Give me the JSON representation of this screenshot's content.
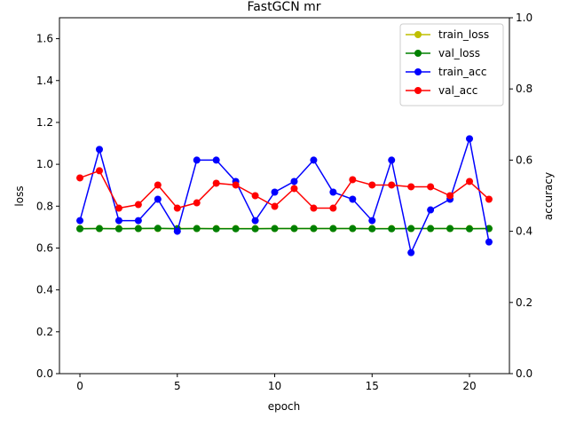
{
  "chart_data": {
    "type": "line",
    "title": "FastGCN mr",
    "xlabel": "epoch",
    "ylabel": "loss",
    "y2label": "accuracy",
    "xlim": [
      -1.05,
      22.05
    ],
    "ylim": [
      0,
      1.7
    ],
    "y2lim": [
      0,
      1.0
    ],
    "x_ticks": [
      0,
      5,
      10,
      15,
      20
    ],
    "y_ticks": [
      0.0,
      0.2,
      0.4,
      0.6,
      0.8,
      1.0,
      1.2,
      1.4,
      1.6
    ],
    "y_tick_labels": [
      "0.0",
      "0.2",
      "0.4",
      "0.6",
      "0.8",
      "1.0",
      "1.2",
      "1.4",
      "1.6"
    ],
    "y2_ticks": [
      0.0,
      0.2,
      0.4,
      0.6,
      0.8,
      1.0
    ],
    "y2_tick_labels": [
      "0.0",
      "0.2",
      "0.4",
      "0.6",
      "0.8",
      "1.0"
    ],
    "grid": false,
    "legend_position": "top-right",
    "x": [
      0,
      1,
      2,
      3,
      4,
      5,
      6,
      7,
      8,
      9,
      10,
      11,
      12,
      13,
      14,
      15,
      16,
      17,
      18,
      19,
      20,
      21
    ],
    "series": [
      {
        "name": "train_loss",
        "axis": "left",
        "color": "#bfbf00",
        "values": [
          0.693,
          0.693,
          0.693,
          0.693,
          0.693,
          0.693,
          0.693,
          0.693,
          0.693,
          0.693,
          0.693,
          0.693,
          0.693,
          0.693,
          0.693,
          0.693,
          0.693,
          0.693,
          0.693,
          0.693,
          0.693,
          0.693
        ]
      },
      {
        "name": "val_loss",
        "axis": "left",
        "color": "#008000",
        "values": [
          0.692,
          0.693,
          0.692,
          0.693,
          0.694,
          0.692,
          0.693,
          0.692,
          0.692,
          0.692,
          0.693,
          0.693,
          0.693,
          0.693,
          0.693,
          0.692,
          0.692,
          0.693,
          0.693,
          0.693,
          0.692,
          0.693
        ]
      },
      {
        "name": "train_acc",
        "axis": "right",
        "color": "#0000ff",
        "values": [
          0.43,
          0.63,
          0.43,
          0.43,
          0.49,
          0.4,
          0.6,
          0.6,
          0.54,
          0.43,
          0.51,
          0.54,
          0.6,
          0.51,
          0.49,
          0.43,
          0.6,
          0.34,
          0.46,
          0.49,
          0.66,
          0.37
        ]
      },
      {
        "name": "val_acc",
        "axis": "right",
        "color": "#ff0000",
        "values": [
          0.55,
          0.57,
          0.465,
          0.475,
          0.53,
          0.465,
          0.48,
          0.535,
          0.53,
          0.5,
          0.47,
          0.52,
          0.465,
          0.465,
          0.545,
          0.53,
          0.53,
          0.525,
          0.525,
          0.5,
          0.54,
          0.49
        ]
      }
    ]
  }
}
